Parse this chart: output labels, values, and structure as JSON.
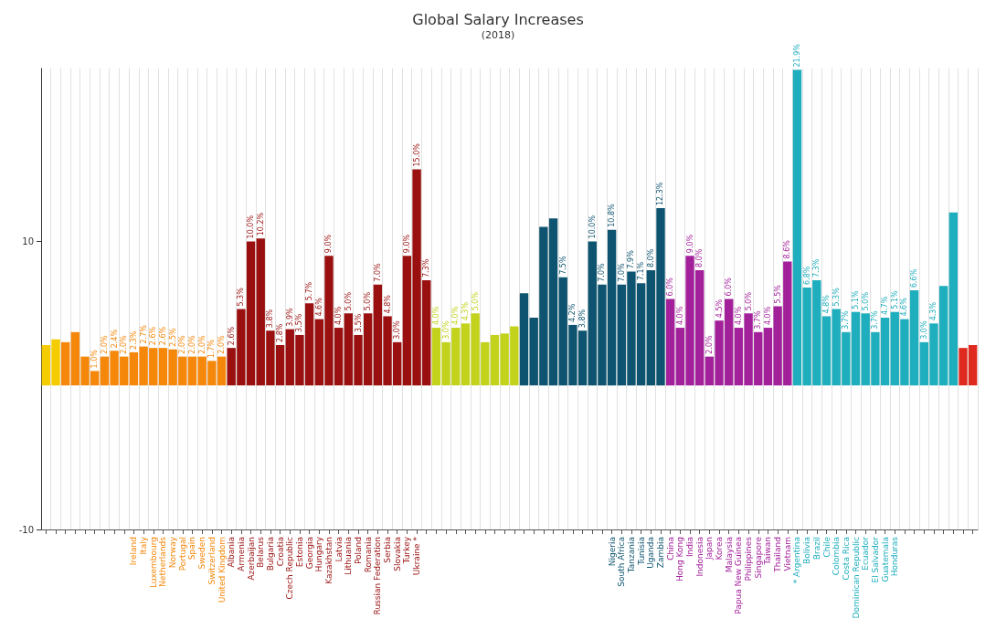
{
  "chart_data": {
    "type": "bar",
    "title": "Global Salary Increases",
    "subtitle": "(2018)",
    "categories": [
      null,
      null,
      null,
      null,
      null,
      null,
      null,
      null,
      null,
      "Ireland",
      "Italy",
      "Luxembourg",
      "Netherlands",
      "Norway",
      "Portugal",
      "Spain",
      "Sweden",
      "Switzerland",
      "United Kingdom",
      "Albania",
      "Armenia",
      "Azerbaijan",
      "Belarus",
      "Bulgaria",
      "Croatia",
      "Czech Republic",
      "Estonia",
      "Georgia",
      "Hungary",
      "Kazakhstan",
      "Latvia",
      "Lithuania",
      "Poland",
      "Romania",
      "Russian Federation",
      "Serbia",
      "Slovakia",
      "Turkey",
      "Ukraine *",
      null,
      null,
      null,
      null,
      null,
      null,
      null,
      null,
      null,
      null,
      null,
      null,
      null,
      null,
      null,
      null,
      null,
      null,
      null,
      "Nigeria",
      "South Africa",
      "Tanzania",
      "Tunisia",
      "Uganda",
      "Zambia",
      "China",
      "Hong Kong",
      "India",
      "Indonesia",
      "Japan",
      "Korea",
      "Malaysia",
      "Papua New Guinea",
      "Philippines",
      "Singapore",
      "Taiwan",
      "Thailand",
      "Vietnam",
      "* Argentina",
      "Bolivia",
      "Brazil",
      "Chile",
      "Colombia",
      "Costa Rica",
      "Dominican Republic",
      "Ecuador",
      "El Salvador",
      "Guatemala",
      "Honduras",
      null,
      null,
      null,
      null,
      null,
      null,
      null,
      null
    ],
    "values": [
      2.8,
      3.2,
      3.0,
      3.7,
      2.0,
      1.0,
      2.0,
      2.4,
      2.0,
      2.3,
      2.7,
      2.6,
      2.6,
      2.5,
      2.0,
      2.0,
      2.0,
      1.7,
      2.0,
      2.6,
      5.3,
      10.0,
      10.2,
      3.8,
      2.8,
      3.9,
      3.5,
      5.7,
      4.6,
      9.0,
      4.0,
      5.0,
      3.5,
      5.0,
      7.0,
      4.8,
      3.0,
      9.0,
      15.0,
      7.3,
      4.0,
      3.0,
      4.0,
      4.3,
      5.0,
      3.0,
      3.5,
      3.6,
      4.1,
      6.4,
      4.7,
      11.0,
      11.6,
      7.5,
      4.2,
      3.8,
      10.0,
      7.0,
      10.8,
      7.0,
      7.9,
      7.1,
      8.0,
      12.3,
      6.0,
      4.0,
      9.0,
      8.0,
      2.0,
      4.5,
      6.0,
      4.0,
      5.0,
      3.7,
      4.0,
      5.5,
      8.6,
      21.9,
      6.8,
      7.3,
      4.8,
      5.3,
      3.7,
      5.1,
      5.0,
      3.7,
      4.7,
      5.1,
      4.6,
      6.6,
      3.0,
      4.3,
      6.9,
      12.0,
      2.6,
      2.8
    ],
    "value_labels": [
      null,
      null,
      null,
      null,
      null,
      "1.0%",
      "2.0%",
      "2.4%",
      "2.0%",
      "2.3%",
      "2.7%",
      "2.6%",
      "2.6%",
      "2.5%",
      "2.0%",
      "2.0%",
      "2.0%",
      "1.7%",
      "2.0%",
      "2.6%",
      "5.3%",
      "10.0%",
      "10.2%",
      "3.8%",
      "2.8%",
      "3.9%",
      "3.5%",
      "5.7%",
      "4.6%",
      "9.0%",
      "4.0%",
      "5.0%",
      "3.5%",
      "5.0%",
      "7.0%",
      "4.8%",
      "3.0%",
      "9.0%",
      "15.0%",
      "7.3%",
      "4.0%",
      "3.0%",
      "4.0%",
      "4.3%",
      "5.0%",
      null,
      null,
      null,
      null,
      null,
      null,
      null,
      null,
      "7.5%",
      "4.2%",
      "3.8%",
      "10.0%",
      "7.0%",
      "10.8%",
      "7.0%",
      "7.9%",
      "7.1%",
      "8.0%",
      "12.3%",
      "6.0%",
      "4.0%",
      "9.0%",
      "8.0%",
      "2.0%",
      "4.5%",
      "6.0%",
      "4.0%",
      "5.0%",
      "3.7%",
      "4.0%",
      "5.5%",
      "8.6%",
      "21.9%",
      "6.8%",
      "7.3%",
      "4.8%",
      "5.3%",
      "3.7%",
      "5.1%",
      "5.0%",
      "3.7%",
      "4.7%",
      "5.1%",
      "4.6%",
      "6.6%",
      "3.0%",
      "4.3%",
      null,
      null,
      null,
      null
    ],
    "colors": [
      "#f5cc00",
      "#f5cc00",
      "#f5870a",
      "#f5870a",
      "#f5870a",
      "#f5870a",
      "#f5870a",
      "#f5870a",
      "#f5870a",
      "#f5870a",
      "#f5870a",
      "#f5870a",
      "#f5870a",
      "#f5870a",
      "#f5870a",
      "#f5870a",
      "#f5870a",
      "#f5870a",
      "#f5870a",
      "#9a1010",
      "#9a1010",
      "#9a1010",
      "#9a1010",
      "#9a1010",
      "#9a1010",
      "#9a1010",
      "#9a1010",
      "#9a1010",
      "#9a1010",
      "#9a1010",
      "#9a1010",
      "#9a1010",
      "#9a1010",
      "#9a1010",
      "#9a1010",
      "#9a1010",
      "#9a1010",
      "#9a1010",
      "#9a1010",
      "#9a1010",
      "#c3d31c",
      "#c3d31c",
      "#c3d31c",
      "#c3d31c",
      "#c3d31c",
      "#c3d31c",
      "#c3d31c",
      "#c3d31c",
      "#c3d31c",
      "#0e5470",
      "#0e5470",
      "#0e5470",
      "#0e5470",
      "#0e5470",
      "#0e5470",
      "#0e5470",
      "#0e5470",
      "#0e5470",
      "#0e5470",
      "#0e5470",
      "#0e5470",
      "#0e5470",
      "#0e5470",
      "#0e5470",
      "#a3209b",
      "#a3209b",
      "#a3209b",
      "#a3209b",
      "#a3209b",
      "#a3209b",
      "#a3209b",
      "#a3209b",
      "#a3209b",
      "#a3209b",
      "#a3209b",
      "#a3209b",
      "#a3209b",
      "#1eaebd",
      "#1eaebd",
      "#1eaebd",
      "#1eaebd",
      "#1eaebd",
      "#1eaebd",
      "#1eaebd",
      "#1eaebd",
      "#1eaebd",
      "#1eaebd",
      "#1eaebd",
      "#1eaebd",
      "#1eaebd",
      "#1eaebd",
      "#1eaebd",
      "#1eaebd",
      "#1eaebd",
      "#e02a1f",
      "#e02a1f"
    ],
    "ylim": [
      -10,
      22
    ],
    "yticks": [
      -10,
      10
    ],
    "grid": "x"
  }
}
